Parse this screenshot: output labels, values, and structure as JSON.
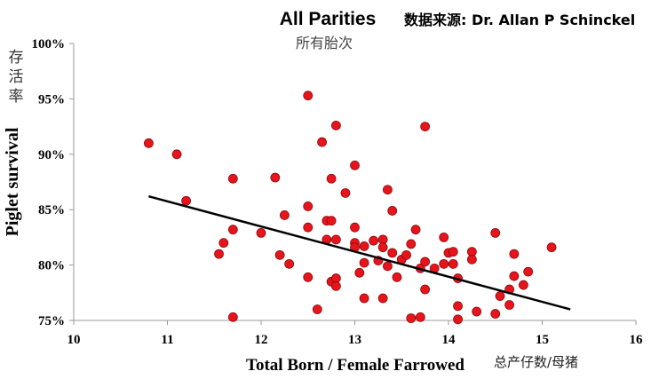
{
  "chart_data": {
    "type": "scatter",
    "title": "All Parities",
    "subtitle": "所有胎次",
    "source": "数据来源: Dr. Allan P Schinckel",
    "xlabel": "Total Born / Female Farrowed",
    "xlabel_cn": "总产仔数/母猪",
    "ylabel": "Piglet survival",
    "ylabel_cn": "存活率",
    "xlim": [
      10,
      16
    ],
    "ylim": [
      75,
      100
    ],
    "xticks": [
      "10",
      "11",
      "12",
      "13",
      "14",
      "15",
      "16"
    ],
    "yticks": [
      "75%",
      "80%",
      "85%",
      "90%",
      "95%",
      "100%"
    ],
    "grid": false,
    "trendline": {
      "x": [
        10.8,
        15.3
      ],
      "y": [
        86.2,
        76.0
      ]
    },
    "points": [
      [
        10.8,
        91.0
      ],
      [
        11.1,
        90.0
      ],
      [
        11.2,
        85.8
      ],
      [
        11.55,
        81.0
      ],
      [
        11.6,
        82.0
      ],
      [
        11.7,
        87.8
      ],
      [
        11.7,
        83.2
      ],
      [
        11.7,
        75.3
      ],
      [
        12.0,
        82.9
      ],
      [
        12.15,
        87.9
      ],
      [
        12.2,
        80.9
      ],
      [
        12.25,
        84.5
      ],
      [
        12.3,
        80.1
      ],
      [
        12.5,
        95.3
      ],
      [
        12.5,
        85.3
      ],
      [
        12.5,
        83.4
      ],
      [
        12.5,
        78.9
      ],
      [
        12.6,
        76.0
      ],
      [
        12.65,
        91.1
      ],
      [
        12.7,
        84.0
      ],
      [
        12.7,
        82.3
      ],
      [
        12.75,
        87.8
      ],
      [
        12.75,
        84.0
      ],
      [
        12.75,
        78.5
      ],
      [
        12.8,
        92.6
      ],
      [
        12.8,
        82.3
      ],
      [
        12.8,
        78.8
      ],
      [
        12.8,
        78.1
      ],
      [
        12.9,
        86.5
      ],
      [
        13.0,
        89.0
      ],
      [
        13.0,
        83.4
      ],
      [
        13.0,
        82.0
      ],
      [
        13.0,
        81.6
      ],
      [
        13.05,
        79.3
      ],
      [
        13.1,
        81.7
      ],
      [
        13.1,
        80.2
      ],
      [
        13.1,
        77.0
      ],
      [
        13.2,
        82.2
      ],
      [
        13.25,
        80.4
      ],
      [
        13.3,
        82.3
      ],
      [
        13.3,
        81.6
      ],
      [
        13.3,
        77.0
      ],
      [
        13.35,
        86.8
      ],
      [
        13.35,
        79.9
      ],
      [
        13.4,
        84.9
      ],
      [
        13.4,
        81.1
      ],
      [
        13.45,
        78.9
      ],
      [
        13.5,
        80.5
      ],
      [
        13.55,
        80.9
      ],
      [
        13.6,
        81.9
      ],
      [
        13.6,
        75.2
      ],
      [
        13.65,
        83.2
      ],
      [
        13.7,
        79.7
      ],
      [
        13.7,
        75.3
      ],
      [
        13.75,
        92.5
      ],
      [
        13.75,
        80.3
      ],
      [
        13.75,
        77.8
      ],
      [
        13.85,
        79.7
      ],
      [
        13.95,
        82.5
      ],
      [
        13.95,
        80.1
      ],
      [
        14.0,
        81.1
      ],
      [
        14.05,
        81.2
      ],
      [
        14.05,
        80.1
      ],
      [
        14.1,
        78.8
      ],
      [
        14.1,
        76.3
      ],
      [
        14.1,
        75.1
      ],
      [
        14.25,
        81.2
      ],
      [
        14.25,
        80.5
      ],
      [
        14.3,
        75.8
      ],
      [
        14.5,
        82.9
      ],
      [
        14.5,
        75.6
      ],
      [
        14.55,
        77.2
      ],
      [
        14.65,
        77.8
      ],
      [
        14.65,
        76.4
      ],
      [
        14.7,
        81.0
      ],
      [
        14.7,
        79.0
      ],
      [
        14.8,
        78.2
      ],
      [
        14.85,
        79.4
      ],
      [
        15.1,
        81.6
      ]
    ]
  }
}
